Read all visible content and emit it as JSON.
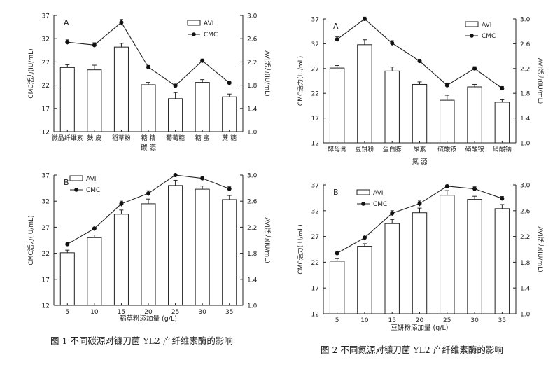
{
  "figures": [
    {
      "caption": "图 1   不同碳源对镰刀菌 YL2 产纤维素酶的影响"
    },
    {
      "caption": "图 2   不同氮源对镰刀菌 YL2 产纤维素酶的影响"
    }
  ],
  "chart_data": [
    {
      "type": "bar",
      "panel": "A",
      "categories": [
        "微晶纤维素",
        "麸 皮",
        "稻草粉",
        "糖 精",
        "葡萄糖",
        "糖 蜜",
        "蔗 糖"
      ],
      "xlabel": "碳 源",
      "ylabel": "CMC活力(IU/mL)",
      "y2label": "AVI活力(IU/mL)",
      "ylim": [
        12,
        37
      ],
      "yticks": [
        "12",
        "17",
        "22",
        "27",
        "32",
        "37"
      ],
      "y2lim": [
        1.0,
        3.0
      ],
      "y2ticks": [
        "1.0",
        "1.4",
        "1.8",
        "2.2",
        "2.6",
        "3.0"
      ],
      "legend_placement": "top-right",
      "series": [
        {
          "name": "AVI",
          "kind": "bar",
          "axis": "left",
          "values": [
            25.8,
            25.3,
            30.2,
            22.1,
            19.1,
            22.6,
            19.5
          ],
          "errors": [
            0.6,
            1.0,
            0.8,
            0.5,
            1.3,
            0.6,
            0.6
          ]
        },
        {
          "name": "CMC",
          "kind": "line",
          "axis": "right",
          "values": [
            2.54,
            2.49,
            2.88,
            2.11,
            1.79,
            2.22,
            1.84
          ],
          "errors": [
            0.04,
            0.04,
            0.05,
            0.03,
            0.03,
            0.03,
            0.03
          ]
        }
      ]
    },
    {
      "type": "bar",
      "panel": "A",
      "categories": [
        "酵母膏",
        "豆饼粉",
        "蛋白胨",
        "尿素",
        "硫酸铵",
        "硝酸铵",
        "硝酸钠"
      ],
      "xlabel": "氮 源",
      "ylabel": "CMC活力(IU/mL)",
      "y2label": "AVI活力(IU/mL)",
      "ylim": [
        12,
        37
      ],
      "yticks": [
        "12",
        "17",
        "22",
        "27",
        "32",
        "37"
      ],
      "y2lim": [
        1.0,
        3.0
      ],
      "y2ticks": [
        "1.0",
        "1.4",
        "1.8",
        "2.2",
        "2.6",
        "3.0"
      ],
      "legend_placement": "top-right",
      "series": [
        {
          "name": "AVI",
          "kind": "bar",
          "axis": "left",
          "values": [
            27.1,
            31.8,
            26.5,
            23.8,
            20.6,
            23.3,
            20.2
          ],
          "errors": [
            0.5,
            1.0,
            0.8,
            0.5,
            1.0,
            0.5,
            0.5
          ]
        },
        {
          "name": "CMC",
          "kind": "line",
          "axis": "right",
          "values": [
            2.67,
            3.0,
            2.61,
            2.32,
            1.93,
            2.2,
            1.88
          ],
          "errors": [
            0.04,
            0.03,
            0.04,
            0.03,
            0.03,
            0.03,
            0.03
          ]
        }
      ]
    },
    {
      "type": "bar",
      "panel": "B",
      "categories": [
        "5",
        "10",
        "15",
        "20",
        "25",
        "30",
        "35"
      ],
      "xlabel": "稻草粉添加量 (g/L)",
      "ylabel": "CMC活力(IU/mL)",
      "y2label": "AVI活力(IU/mL)",
      "ylim": [
        12,
        37
      ],
      "yticks": [
        "12",
        "17",
        "22",
        "27",
        "32",
        "37"
      ],
      "y2lim": [
        1.0,
        3.0
      ],
      "y2ticks": [
        "1.0",
        "1.4",
        "1.8",
        "2.2",
        "2.6",
        "3.0"
      ],
      "legend_placement": "top-left",
      "series": [
        {
          "name": "AVI",
          "kind": "bar",
          "axis": "left",
          "values": [
            22.1,
            25.0,
            29.5,
            31.5,
            35.0,
            34.3,
            32.3
          ],
          "errors": [
            0.5,
            0.5,
            0.8,
            0.9,
            1.0,
            0.6,
            0.8
          ]
        },
        {
          "name": "CMC",
          "kind": "line",
          "axis": "right",
          "values": [
            1.94,
            2.18,
            2.56,
            2.72,
            3.0,
            2.95,
            2.79
          ],
          "errors": [
            0.03,
            0.04,
            0.04,
            0.04,
            0.0,
            0.03,
            0.03
          ]
        }
      ]
    },
    {
      "type": "bar",
      "panel": "B",
      "categories": [
        "5",
        "10",
        "15",
        "20",
        "25",
        "30",
        "35"
      ],
      "xlabel": "豆饼粉添加量 (g/L)",
      "ylabel": "CMC活力(IU/mL)",
      "y2label": "AVI活力(IU/mL)",
      "ylim": [
        12,
        37
      ],
      "yticks": [
        "12",
        "17",
        "22",
        "27",
        "32",
        "37"
      ],
      "y2lim": [
        1.0,
        3.0
      ],
      "y2ticks": [
        "1.0",
        "1.4",
        "1.8",
        "2.2",
        "2.6",
        "3.0"
      ],
      "legend_placement": "top-left",
      "series": [
        {
          "name": "AVI",
          "kind": "bar",
          "axis": "left",
          "values": [
            22.2,
            25.1,
            29.5,
            31.6,
            35.0,
            34.2,
            32.4
          ],
          "errors": [
            0.5,
            0.5,
            0.8,
            0.9,
            0.9,
            0.6,
            0.8
          ]
        },
        {
          "name": "CMC",
          "kind": "line",
          "axis": "right",
          "values": [
            1.94,
            2.18,
            2.56,
            2.71,
            2.98,
            2.94,
            2.79
          ],
          "errors": [
            0.03,
            0.04,
            0.04,
            0.04,
            0.0,
            0.03,
            0.03
          ]
        }
      ]
    }
  ]
}
